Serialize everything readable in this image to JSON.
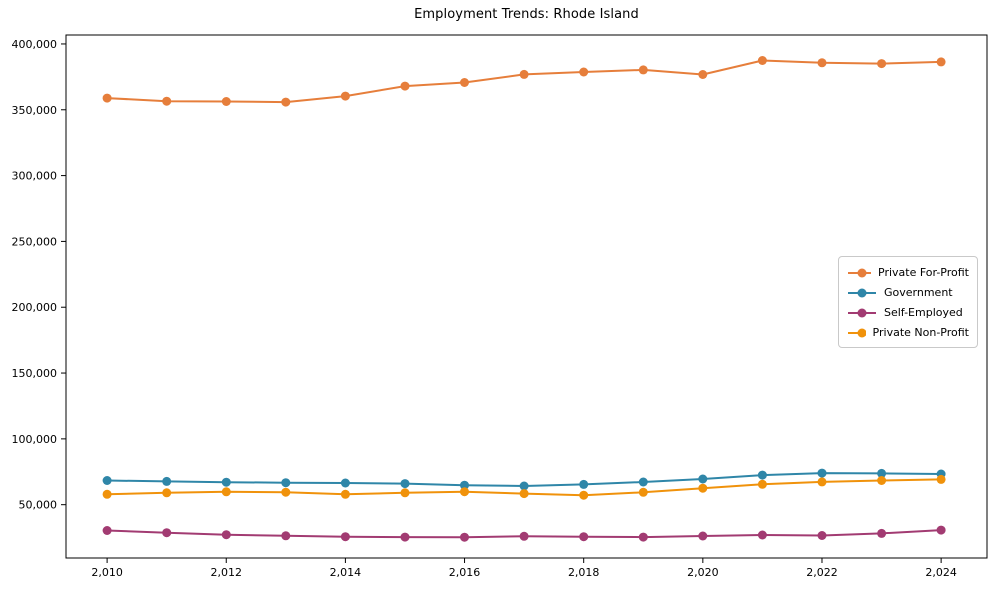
{
  "figure": {
    "title": "Employment Trends: Rhode Island",
    "background_color": "#ffffff",
    "axis_color": "#000000"
  },
  "chart_data": {
    "type": "line",
    "title": "Employment Trends: Rhode Island",
    "xlabel": "",
    "ylabel": "",
    "grid": false,
    "legend_position": "center right",
    "marker": "circle",
    "x": [
      2010,
      2011,
      2012,
      2013,
      2014,
      2015,
      2016,
      2017,
      2018,
      2019,
      2020,
      2021,
      2022,
      2023,
      2024
    ],
    "series": [
      {
        "name": "Private For-Profit",
        "color": "#E67E3B",
        "values": [
          358900,
          356500,
          356300,
          355800,
          360400,
          368000,
          370700,
          376900,
          378700,
          380300,
          376800,
          387400,
          385700,
          385100,
          386400
        ]
      },
      {
        "name": "Government",
        "color": "#2F86A8",
        "values": [
          68400,
          67700,
          67100,
          66700,
          66500,
          66000,
          64800,
          64200,
          65400,
          67200,
          69500,
          72500,
          74000,
          73800,
          73300
        ]
      },
      {
        "name": "Self-Employed",
        "color": "#A23B72",
        "values": [
          30400,
          28700,
          27200,
          26400,
          25700,
          25400,
          25300,
          26000,
          25700,
          25400,
          26200,
          27000,
          26600,
          28200,
          30700
        ]
      },
      {
        "name": "Private Non-Profit",
        "color": "#F0920B",
        "values": [
          57900,
          59000,
          59800,
          59500,
          57900,
          59000,
          59900,
          58400,
          57200,
          59400,
          62500,
          65500,
          67300,
          68400,
          69200
        ]
      }
    ],
    "xlim": [
      2009.31,
      2024.77
    ],
    "ylim": [
      9500,
      406800
    ],
    "xticks": [
      2010,
      2012,
      2014,
      2016,
      2018,
      2020,
      2022,
      2024
    ],
    "yticks": [
      50000,
      100000,
      150000,
      200000,
      250000,
      300000,
      350000,
      400000
    ],
    "ytick_format": "comma"
  }
}
